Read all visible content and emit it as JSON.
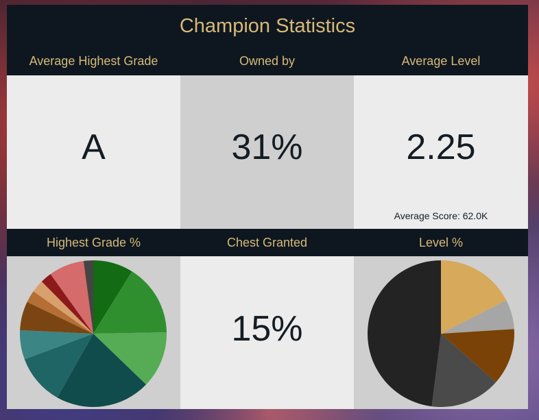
{
  "title": "Champion Statistics",
  "headers": {
    "avg_grade": "Average Highest Grade",
    "owned_by": "Owned by",
    "avg_level": "Average Level",
    "grade_pct": "Highest Grade %",
    "chest": "Chest Granted",
    "level_pct": "Level %"
  },
  "values": {
    "avg_grade": "A",
    "owned_by": "31%",
    "avg_level": "2.25",
    "avg_score": "Average Score: 62.0K",
    "chest": "15%"
  },
  "chart_data": [
    {
      "type": "pie",
      "name": "Highest Grade %",
      "title": "Highest Grade %",
      "values": [
        9.2,
        16.5,
        13.0,
        21.8,
        11.6,
        6.7,
        6.6,
        2.8,
        2.9,
        2.6,
        8.1,
        2.2
      ],
      "colors": [
        "#136b13",
        "#2f8f2f",
        "#55ac55",
        "#104c4c",
        "#206565",
        "#3c8585",
        "#7a4512",
        "#b56e34",
        "#d9a06e",
        "#8c1a1a",
        "#d66b6b",
        "#444444"
      ]
    },
    {
      "type": "pie",
      "name": "Level %",
      "title": "Level %",
      "values": [
        17.5,
        6.5,
        12.5,
        15.5,
        48.0
      ],
      "colors": [
        "#d6a95b",
        "#a6a6a6",
        "#7a4206",
        "#4a4a4a",
        "#232323"
      ]
    }
  ]
}
